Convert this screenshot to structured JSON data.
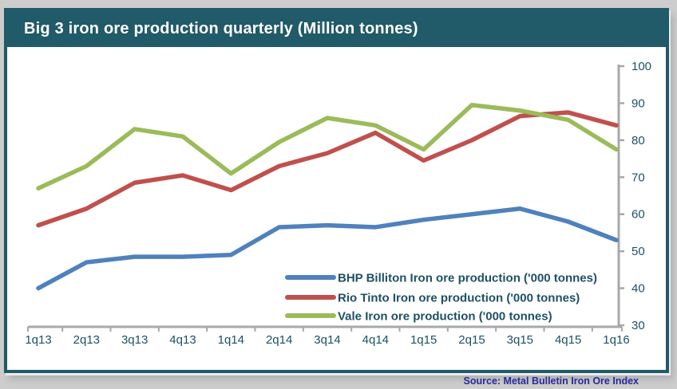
{
  "header": {
    "title": "Big 3 iron ore production quarterly (Million tonnes)"
  },
  "source": {
    "label": "Source: Metal Bulletin Iron Ore Index"
  },
  "colors": {
    "panel_teal": "#215A68",
    "axis_line": "#A8A8A8",
    "tick_label": "#1E5064",
    "legend_text": "#1E5064",
    "source_text": "#28289B",
    "page_background": "#CDCDCD",
    "plot_background": "#FFFFFF"
  },
  "chart_data": {
    "type": "line",
    "title": "Big 3 iron ore production quarterly (Million tonnes)",
    "categories": [
      "1q13",
      "2q13",
      "3q13",
      "4q13",
      "1q14",
      "2q14",
      "3q14",
      "4q14",
      "1q15",
      "2q15",
      "3q15",
      "4q15",
      "1q16"
    ],
    "series": [
      {
        "name": "BHP Billiton Iron ore production ('000 tonnes)",
        "color": "#4F81BD",
        "values": [
          40,
          47,
          48.5,
          48.5,
          49,
          56.5,
          57,
          56.5,
          58.5,
          60,
          61.5,
          58,
          53
        ]
      },
      {
        "name": "Rio Tinto Iron ore production ('000 tonnes)",
        "color": "#C0504D",
        "values": [
          57,
          61.5,
          68.5,
          70.5,
          66.5,
          73,
          76.5,
          82,
          74.5,
          80,
          86.5,
          87.5,
          84
        ]
      },
      {
        "name": "Vale Iron ore production ('000 tonnes)",
        "color": "#9BBB59",
        "values": [
          67,
          73,
          83,
          81,
          71,
          79.5,
          86,
          84,
          77.5,
          89.5,
          88,
          85.5,
          77.5
        ]
      }
    ],
    "xlabel": "",
    "ylabel": "",
    "y_axis": {
      "min": 30,
      "max": 100,
      "step": 10,
      "side": "right"
    },
    "x_axis": {
      "side": "bottom"
    },
    "grid": false,
    "legend_position": "inside-lower-middle"
  }
}
